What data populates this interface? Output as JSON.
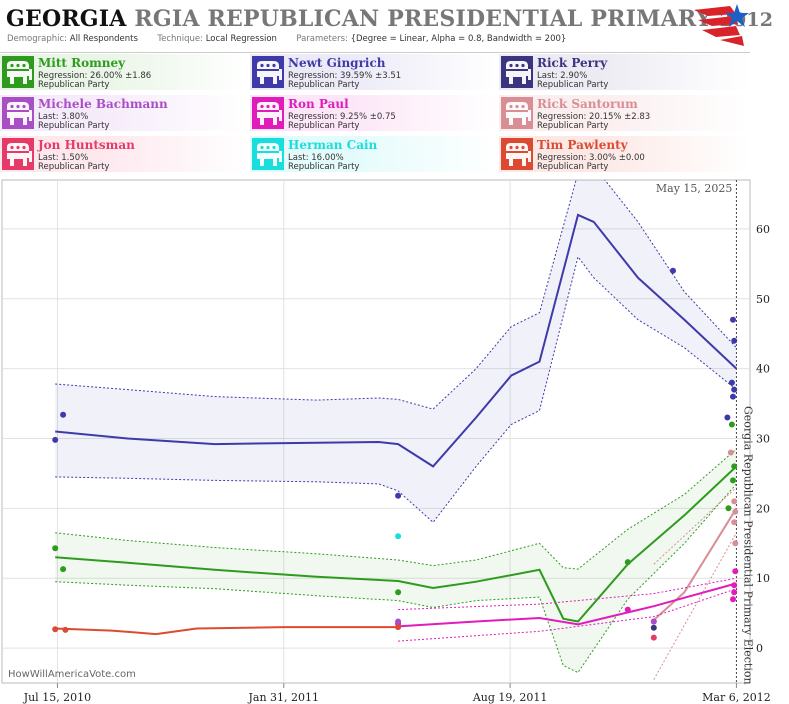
{
  "header": {
    "title_state": "GEORGIA",
    "title_rest": "RGIA REPUBLICAN PRESIDENTIAL PRIMARY",
    "title_year": "2012",
    "demographic_label": "Demographic:",
    "demographic_value": "All Respondents",
    "technique_label": "Technique:",
    "technique_value": "Local Regression",
    "parameters_label": "Parameters:",
    "parameters_value": "{Degree = Linear, Alpha = 0.8, Bandwidth = 200}"
  },
  "legend": [
    {
      "name": "Mitt Romney",
      "stat": "Regression: 26.00% ±1.86",
      "party": "Republican Party",
      "color": "#2e9b1e",
      "bg": "#e9f5e6"
    },
    {
      "name": "Newt Gingrich",
      "stat": "Regression: 39.59% ±3.51",
      "party": "Republican Party",
      "color": "#3f3aaa",
      "bg": "#eceaf7"
    },
    {
      "name": "Rick Perry",
      "stat": "Last: 2.90%",
      "party": "Republican Party",
      "color": "#3b3580",
      "bg": "#ecebf3"
    },
    {
      "name": "Michele Bachmann",
      "stat": "Last: 3.80%",
      "party": "Republican Party",
      "color": "#a94fc6",
      "bg": "#f6ebfa"
    },
    {
      "name": "Ron Paul",
      "stat": "Regression: 9.25% ±0.75",
      "party": "Republican Party",
      "color": "#e01dbb",
      "bg": "#fce6f7"
    },
    {
      "name": "Rick Santorum",
      "stat": "Regression: 20.15% ±2.83",
      "party": "Republican Party",
      "color": "#d98e95",
      "bg": "#fbeeef"
    },
    {
      "name": "Jon Huntsman",
      "stat": "Last: 1.50%",
      "party": "Republican Party",
      "color": "#e63a68",
      "bg": "#fde8ee"
    },
    {
      "name": "Herman Cain",
      "stat": "Last: 16.00%",
      "party": "Republican Party",
      "color": "#19dede",
      "bg": "#e4fbfb"
    },
    {
      "name": "Tim Pawlenty",
      "stat": "Regression: 3.00% ±0.00",
      "party": "Republican Party",
      "color": "#dd4a32",
      "bg": "#fce9e6"
    }
  ],
  "plot": {
    "date_note": "May 15, 2025",
    "election_label": "Georgia Republican Presidential Primary Election",
    "watermark": "HowWillAmericaVote.com"
  },
  "chart_data": {
    "type": "scatter",
    "title": "GEORGIA RGIA REPUBLICAN PRESIDENTIAL PRIMARY 2012",
    "xlabel": "",
    "ylabel": "",
    "x_ticks": [
      "Jul 15, 2010",
      "Jan 31, 2011",
      "Aug 19, 2011",
      "Mar 6, 2012"
    ],
    "y_ticks": [
      0,
      10,
      20,
      30,
      40,
      50,
      60
    ],
    "xlim": [
      "2010-05-27",
      "2012-03-18"
    ],
    "ylim": [
      -5,
      67
    ],
    "election_date": "2012-03-06",
    "grid": true,
    "series": [
      {
        "name": "Newt Gingrich",
        "color": "#3f3aaa",
        "band": true,
        "points": [
          [
            "2010-07-13",
            29.8
          ],
          [
            "2010-07-20",
            33.4
          ],
          [
            "2011-05-12",
            21.8
          ],
          [
            "2012-01-10",
            54
          ],
          [
            "2012-02-27",
            33
          ],
          [
            "2012-03-02",
            38
          ],
          [
            "2012-03-03",
            36
          ],
          [
            "2012-03-04",
            37
          ],
          [
            "2012-03-03",
            47
          ],
          [
            "2012-03-04",
            44
          ]
        ],
        "line": [
          [
            "2010-07-13",
            31
          ],
          [
            "2010-09-15",
            30
          ],
          [
            "2010-12-01",
            29.2
          ],
          [
            "2011-03-01",
            29.4
          ],
          [
            "2011-04-25",
            29.5
          ],
          [
            "2011-05-12",
            29.2
          ],
          [
            "2011-06-12",
            26
          ],
          [
            "2011-07-20",
            33
          ],
          [
            "2011-08-20",
            39
          ],
          [
            "2011-09-14",
            41
          ],
          [
            "2011-10-18",
            62
          ],
          [
            "2011-11-01",
            61
          ],
          [
            "2011-12-10",
            53
          ],
          [
            "2012-01-20",
            47
          ],
          [
            "2012-03-06",
            40
          ]
        ],
        "upper": [
          [
            "2010-07-13",
            37.8
          ],
          [
            "2010-09-15",
            37
          ],
          [
            "2010-12-01",
            36
          ],
          [
            "2011-03-01",
            35.5
          ],
          [
            "2011-04-25",
            35.8
          ],
          [
            "2011-05-12",
            35.6
          ],
          [
            "2011-06-12",
            34.2
          ],
          [
            "2011-07-20",
            40
          ],
          [
            "2011-08-20",
            46
          ],
          [
            "2011-09-14",
            48
          ],
          [
            "2011-10-18",
            68
          ],
          [
            "2011-11-01",
            69
          ],
          [
            "2011-12-10",
            61
          ],
          [
            "2012-01-20",
            51
          ],
          [
            "2012-03-06",
            43
          ]
        ],
        "lower": [
          [
            "2010-07-13",
            24.5
          ],
          [
            "2010-09-15",
            24.3
          ],
          [
            "2010-12-01",
            24
          ],
          [
            "2011-03-01",
            23.8
          ],
          [
            "2011-04-25",
            23.5
          ],
          [
            "2011-05-12",
            22.5
          ],
          [
            "2011-06-12",
            18
          ],
          [
            "2011-07-20",
            26
          ],
          [
            "2011-08-20",
            32
          ],
          [
            "2011-09-14",
            34
          ],
          [
            "2011-10-18",
            56
          ],
          [
            "2011-11-01",
            53
          ],
          [
            "2011-12-10",
            47
          ],
          [
            "2012-01-20",
            43
          ],
          [
            "2012-03-06",
            37
          ]
        ]
      },
      {
        "name": "Mitt Romney",
        "color": "#2e9b1e",
        "band": true,
        "points": [
          [
            "2010-07-13",
            14.3
          ],
          [
            "2010-07-20",
            11.3
          ],
          [
            "2011-05-12",
            8
          ],
          [
            "2011-12-01",
            12.3
          ],
          [
            "2012-02-28",
            20
          ],
          [
            "2012-03-03",
            24
          ],
          [
            "2012-03-04",
            26
          ],
          [
            "2012-03-02",
            32
          ]
        ],
        "line": [
          [
            "2010-07-13",
            13
          ],
          [
            "2010-09-15",
            12.2
          ],
          [
            "2010-12-01",
            11.2
          ],
          [
            "2011-03-01",
            10.2
          ],
          [
            "2011-05-12",
            9.6
          ],
          [
            "2011-06-12",
            8.6
          ],
          [
            "2011-07-20",
            9.5
          ],
          [
            "2011-09-14",
            11.2
          ],
          [
            "2011-10-05",
            4.2
          ],
          [
            "2011-10-18",
            3.8
          ],
          [
            "2011-12-01",
            12
          ],
          [
            "2012-01-20",
            19
          ],
          [
            "2012-03-06",
            26
          ]
        ],
        "upper": [
          [
            "2010-07-13",
            16.5
          ],
          [
            "2010-09-15",
            15.4
          ],
          [
            "2010-12-01",
            14.4
          ],
          [
            "2011-03-01",
            13.5
          ],
          [
            "2011-05-12",
            12.6
          ],
          [
            "2011-06-12",
            11.8
          ],
          [
            "2011-07-20",
            12.6
          ],
          [
            "2011-09-14",
            15
          ],
          [
            "2011-10-05",
            11.5
          ],
          [
            "2011-10-18",
            11.3
          ],
          [
            "2011-12-01",
            17
          ],
          [
            "2012-01-20",
            22
          ],
          [
            "2012-03-06",
            28.5
          ]
        ],
        "lower": [
          [
            "2010-07-13",
            9.5
          ],
          [
            "2010-09-15",
            9
          ],
          [
            "2010-12-01",
            8.5
          ],
          [
            "2011-03-01",
            7.5
          ],
          [
            "2011-05-12",
            6.8
          ],
          [
            "2011-06-12",
            5.8
          ],
          [
            "2011-07-20",
            6.8
          ],
          [
            "2011-09-14",
            7.3
          ],
          [
            "2011-10-05",
            -2.5
          ],
          [
            "2011-10-18",
            -3.5
          ],
          [
            "2011-12-01",
            7
          ],
          [
            "2012-01-20",
            15
          ],
          [
            "2012-03-06",
            23.5
          ]
        ]
      },
      {
        "name": "Rick Santorum",
        "color": "#d98e95",
        "band": false,
        "points": [
          [
            "2012-03-01",
            28
          ],
          [
            "2012-03-04",
            21
          ],
          [
            "2012-03-05",
            19.5
          ],
          [
            "2012-03-04",
            18
          ],
          [
            "2012-03-05",
            15
          ]
        ],
        "line": [
          [
            "2011-12-24",
            4
          ],
          [
            "2012-01-20",
            8
          ],
          [
            "2012-03-06",
            20
          ]
        ],
        "upper": [
          [
            "2011-12-24",
            12
          ],
          [
            "2012-03-06",
            23
          ]
        ],
        "lower": [
          [
            "2011-12-24",
            -4.5
          ],
          [
            "2012-03-06",
            16.5
          ]
        ]
      },
      {
        "name": "Ron Paul",
        "color": "#e01dbb",
        "band": false,
        "points": [
          [
            "2011-05-12",
            3.5
          ],
          [
            "2011-12-01",
            5.5
          ],
          [
            "2011-12-24",
            3.8
          ],
          [
            "2012-03-03",
            7
          ],
          [
            "2012-03-04",
            9
          ],
          [
            "2012-03-05",
            11
          ],
          [
            "2012-03-04",
            8
          ]
        ],
        "line": [
          [
            "2011-05-12",
            3.1
          ],
          [
            "2011-07-20",
            3.8
          ],
          [
            "2011-09-14",
            4.3
          ],
          [
            "2011-10-18",
            3.4
          ],
          [
            "2011-12-24",
            6
          ],
          [
            "2012-03-06",
            9.25
          ]
        ],
        "upper": [
          [
            "2011-05-12",
            5.5
          ],
          [
            "2011-09-14",
            6.3
          ],
          [
            "2011-12-24",
            7.8
          ],
          [
            "2012-03-06",
            10
          ]
        ],
        "lower": [
          [
            "2011-05-12",
            1
          ],
          [
            "2011-09-14",
            2.4
          ],
          [
            "2011-12-24",
            4.5
          ],
          [
            "2012-03-06",
            8.5
          ]
        ]
      },
      {
        "name": "Tim Pawlenty",
        "color": "#dd4a32",
        "band": false,
        "points": [
          [
            "2010-07-13",
            2.7
          ],
          [
            "2010-07-22",
            2.6
          ],
          [
            "2011-05-12",
            3
          ]
        ],
        "line": [
          [
            "2010-07-13",
            2.8
          ],
          [
            "2010-09-01",
            2.5
          ],
          [
            "2010-10-10",
            2
          ],
          [
            "2010-11-15",
            2.8
          ],
          [
            "2011-02-01",
            3
          ],
          [
            "2011-05-12",
            3
          ]
        ],
        "upper": [],
        "lower": []
      },
      {
        "name": "Herman Cain",
        "color": "#19dede",
        "band": false,
        "points": [
          [
            "2011-05-12",
            16
          ]
        ],
        "line": [],
        "upper": [],
        "lower": []
      },
      {
        "name": "Michele Bachmann",
        "color": "#a94fc6",
        "band": false,
        "points": [
          [
            "2011-05-12",
            3.8
          ],
          [
            "2011-12-24",
            3.8
          ]
        ],
        "line": [],
        "upper": [],
        "lower": []
      },
      {
        "name": "Rick Perry",
        "color": "#3b3580",
        "band": false,
        "points": [
          [
            "2011-12-24",
            2.9
          ]
        ],
        "line": [],
        "upper": [],
        "lower": []
      },
      {
        "name": "Jon Huntsman",
        "color": "#e63a68",
        "band": false,
        "points": [
          [
            "2011-12-24",
            1.5
          ]
        ],
        "line": [],
        "upper": [],
        "lower": []
      }
    ]
  }
}
